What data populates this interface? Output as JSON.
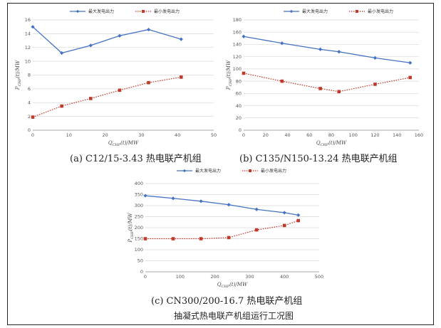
{
  "legend": {
    "max_label": "最大发电出力",
    "min_label": "最小发电出力"
  },
  "colors": {
    "max_series": "#4472C4",
    "min_series": "#C0392B",
    "grid": "#d9d9d9"
  },
  "chart_data": [
    {
      "type": "line",
      "caption": "(a) C12/15-3.43 热电联产机组",
      "xlabel": "Q_CHP(t)/MW",
      "ylabel": "P_CHP(t)/MW",
      "xlim": [
        0,
        50
      ],
      "ylim": [
        0,
        16
      ],
      "xticks": [
        0,
        10,
        20,
        30,
        40,
        50
      ],
      "yticks": [
        0,
        2,
        4,
        6,
        8,
        10,
        12,
        14,
        16
      ],
      "series": [
        {
          "name": "最大发电出力",
          "x": [
            0,
            8,
            16,
            24,
            32,
            41
          ],
          "y": [
            15.0,
            11.2,
            12.3,
            13.7,
            14.6,
            13.2
          ]
        },
        {
          "name": "最小发电出力",
          "x": [
            0,
            8,
            16,
            24,
            32,
            41
          ],
          "y": [
            1.9,
            3.5,
            4.6,
            5.8,
            6.9,
            7.7
          ]
        }
      ]
    },
    {
      "type": "line",
      "caption": "(b) C135/N150-13.24 热电联产机组",
      "xlabel": "Q_CHP(t)/MW",
      "ylabel": "P_CHP(t)/MW",
      "xlim": [
        0,
        160
      ],
      "ylim": [
        0,
        180
      ],
      "xticks": [
        0,
        20,
        40,
        60,
        80,
        100,
        120,
        140,
        160
      ],
      "yticks": [
        0,
        20,
        40,
        60,
        80,
        100,
        120,
        140,
        160,
        180
      ],
      "series": [
        {
          "name": "最大发电出力",
          "x": [
            0,
            35,
            70,
            87,
            120,
            152
          ],
          "y": [
            153,
            142,
            132,
            128,
            118,
            110
          ]
        },
        {
          "name": "最小发电出力",
          "x": [
            0,
            35,
            70,
            87,
            120,
            152
          ],
          "y": [
            93,
            80,
            68,
            63,
            75,
            86
          ]
        }
      ]
    },
    {
      "type": "line",
      "caption": "(c) CN300/200-16.7 热电联产机组",
      "xlabel": "Q_CHP(t)/MW",
      "ylabel": "P_CHP(t)/MW",
      "xlim": [
        0,
        500
      ],
      "ylim": [
        0,
        400
      ],
      "xticks": [
        0,
        100,
        200,
        300,
        400,
        500
      ],
      "yticks": [
        0,
        50,
        100,
        150,
        200,
        250,
        300,
        350,
        400
      ],
      "series": [
        {
          "name": "最大发电出力",
          "x": [
            0,
            80,
            160,
            240,
            320,
            400,
            440
          ],
          "y": [
            345,
            333,
            320,
            304,
            283,
            268,
            257
          ]
        },
        {
          "name": "最小发电出力",
          "x": [
            0,
            80,
            160,
            240,
            320,
            400,
            440
          ],
          "y": [
            150,
            150,
            150,
            155,
            190,
            210,
            232
          ]
        }
      ]
    }
  ],
  "figure_caption": "抽凝式热电联产机组运行工况图"
}
